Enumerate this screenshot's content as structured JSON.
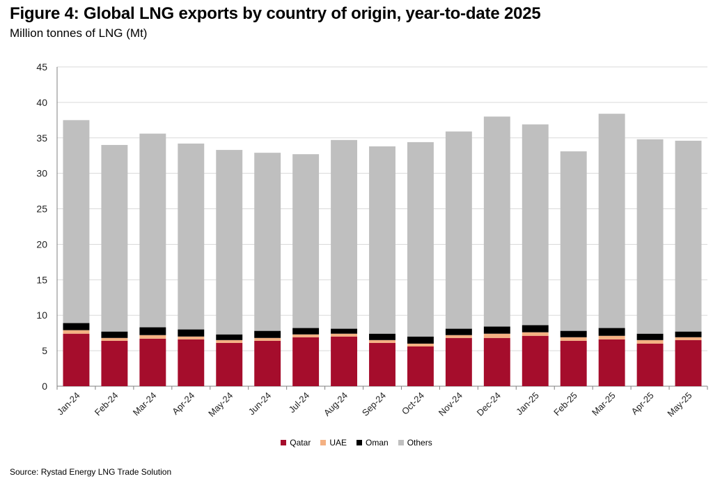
{
  "header": {
    "title": "Figure 4: Global LNG exports by country of origin, year-to-date 2025",
    "subtitle": "Million tonnes of LNG (Mt)"
  },
  "footer": {
    "source": "Source: Rystad Energy LNG Trade Solution"
  },
  "chart_data": {
    "type": "bar",
    "stacked": true,
    "title": "Figure 4: Global LNG exports by country of origin, year-to-date 2025",
    "subtitle": "Million tonnes of LNG (Mt)",
    "xlabel": "",
    "ylabel": "",
    "ylim": [
      0,
      45
    ],
    "yticks": [
      0,
      5,
      10,
      15,
      20,
      25,
      30,
      35,
      40,
      45
    ],
    "grid": true,
    "legend_position": "bottom",
    "categories": [
      "Jan-24",
      "Feb-24",
      "Mar-24",
      "Apr-24",
      "May-24",
      "Jun-24",
      "Jul-24",
      "Aug-24",
      "Sep-24",
      "Oct-24",
      "Nov-24",
      "Dec-24",
      "Jan-25",
      "Feb-25",
      "Mar-25",
      "Apr-25",
      "May-25"
    ],
    "series": [
      {
        "name": "Qatar",
        "color": "#A50D2C",
        "values": [
          7.4,
          6.4,
          6.7,
          6.6,
          6.1,
          6.4,
          6.9,
          7.0,
          6.1,
          5.6,
          6.8,
          6.8,
          7.1,
          6.4,
          6.6,
          6.0,
          6.5
        ]
      },
      {
        "name": "UAE",
        "color": "#F4B183",
        "values": [
          0.5,
          0.4,
          0.5,
          0.4,
          0.4,
          0.4,
          0.4,
          0.4,
          0.4,
          0.4,
          0.4,
          0.6,
          0.5,
          0.5,
          0.5,
          0.5,
          0.4
        ]
      },
      {
        "name": "Oman",
        "color": "#000000",
        "values": [
          1.0,
          0.9,
          1.1,
          1.0,
          0.8,
          1.0,
          0.9,
          0.7,
          0.9,
          1.0,
          0.9,
          1.0,
          1.0,
          0.9,
          1.1,
          0.9,
          0.8
        ]
      },
      {
        "name": "Others",
        "color": "#BFBFBF",
        "values": [
          28.6,
          26.3,
          27.3,
          26.2,
          26.0,
          25.1,
          24.5,
          26.6,
          26.4,
          27.4,
          27.8,
          29.6,
          28.3,
          25.3,
          30.2,
          27.4,
          26.9
        ]
      }
    ]
  }
}
